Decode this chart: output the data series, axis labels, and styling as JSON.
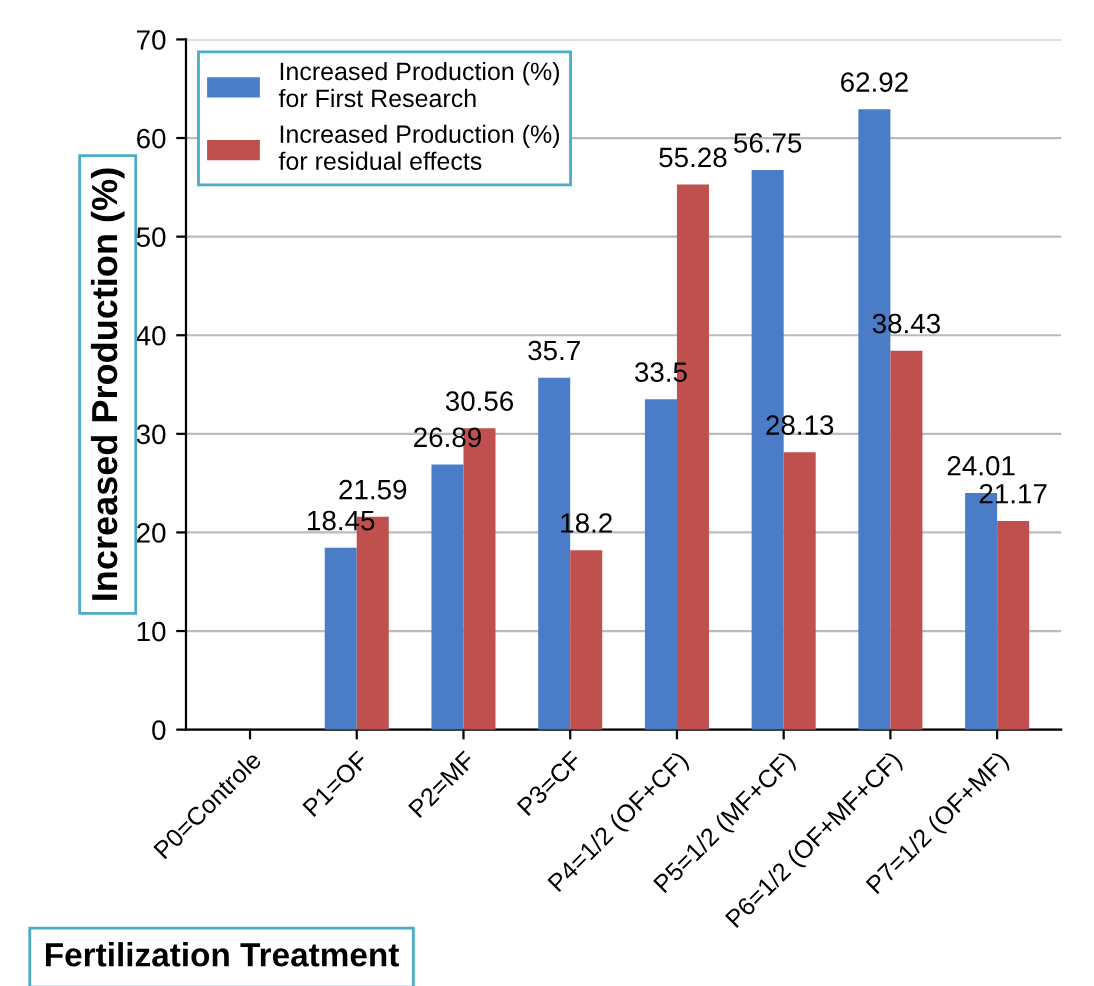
{
  "chart_data": {
    "type": "bar",
    "xlabel": "Fertilization Treatment",
    "ylabel": "Increased Production (%)",
    "categories": [
      "P0=Controle",
      "P1=OF",
      "P2=MF",
      "P3=CF",
      "P4=1/2 (OF+CF)",
      "P5=1/2 (MF+CF)",
      "P6=1/2 (OF+MF+CF)",
      "P7=1/2 (OF+MF)"
    ],
    "series": [
      {
        "name": "Increased Production (%)\nfor First Research",
        "color": "#4a7cc7",
        "values": [
          null,
          18.45,
          26.89,
          35.7,
          33.5,
          56.75,
          62.92,
          24.01
        ]
      },
      {
        "name": "Increased Production (%)\nfor residual effects",
        "color": "#c0504d",
        "values": [
          null,
          21.59,
          30.56,
          18.2,
          55.28,
          28.13,
          38.43,
          21.17
        ]
      }
    ],
    "ylim": [
      0,
      70
    ],
    "yticks": [
      0,
      10,
      20,
      30,
      40,
      50,
      60,
      70
    ],
    "grid": "y",
    "legend": "top left",
    "data_labels": true
  }
}
